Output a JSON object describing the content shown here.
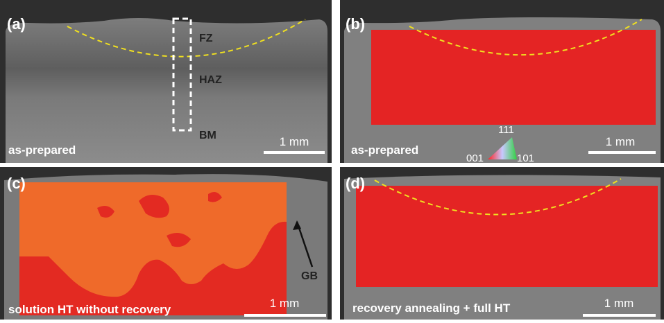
{
  "panels": [
    {
      "label": "(a)",
      "caption": "as-prepared",
      "scale": "1 mm",
      "zones": [
        "FZ",
        "HAZ",
        "BM"
      ]
    },
    {
      "label": "(b)",
      "caption": "as-prepared",
      "scale": "1 mm",
      "ipf": [
        "111",
        "001",
        "101"
      ]
    },
    {
      "label": "(c)",
      "caption": "solution HT without recovery",
      "scale": "1 mm",
      "annotation": "GB"
    },
    {
      "label": "(d)",
      "caption": "recovery annealing + full HT",
      "scale": "1 mm"
    }
  ]
}
